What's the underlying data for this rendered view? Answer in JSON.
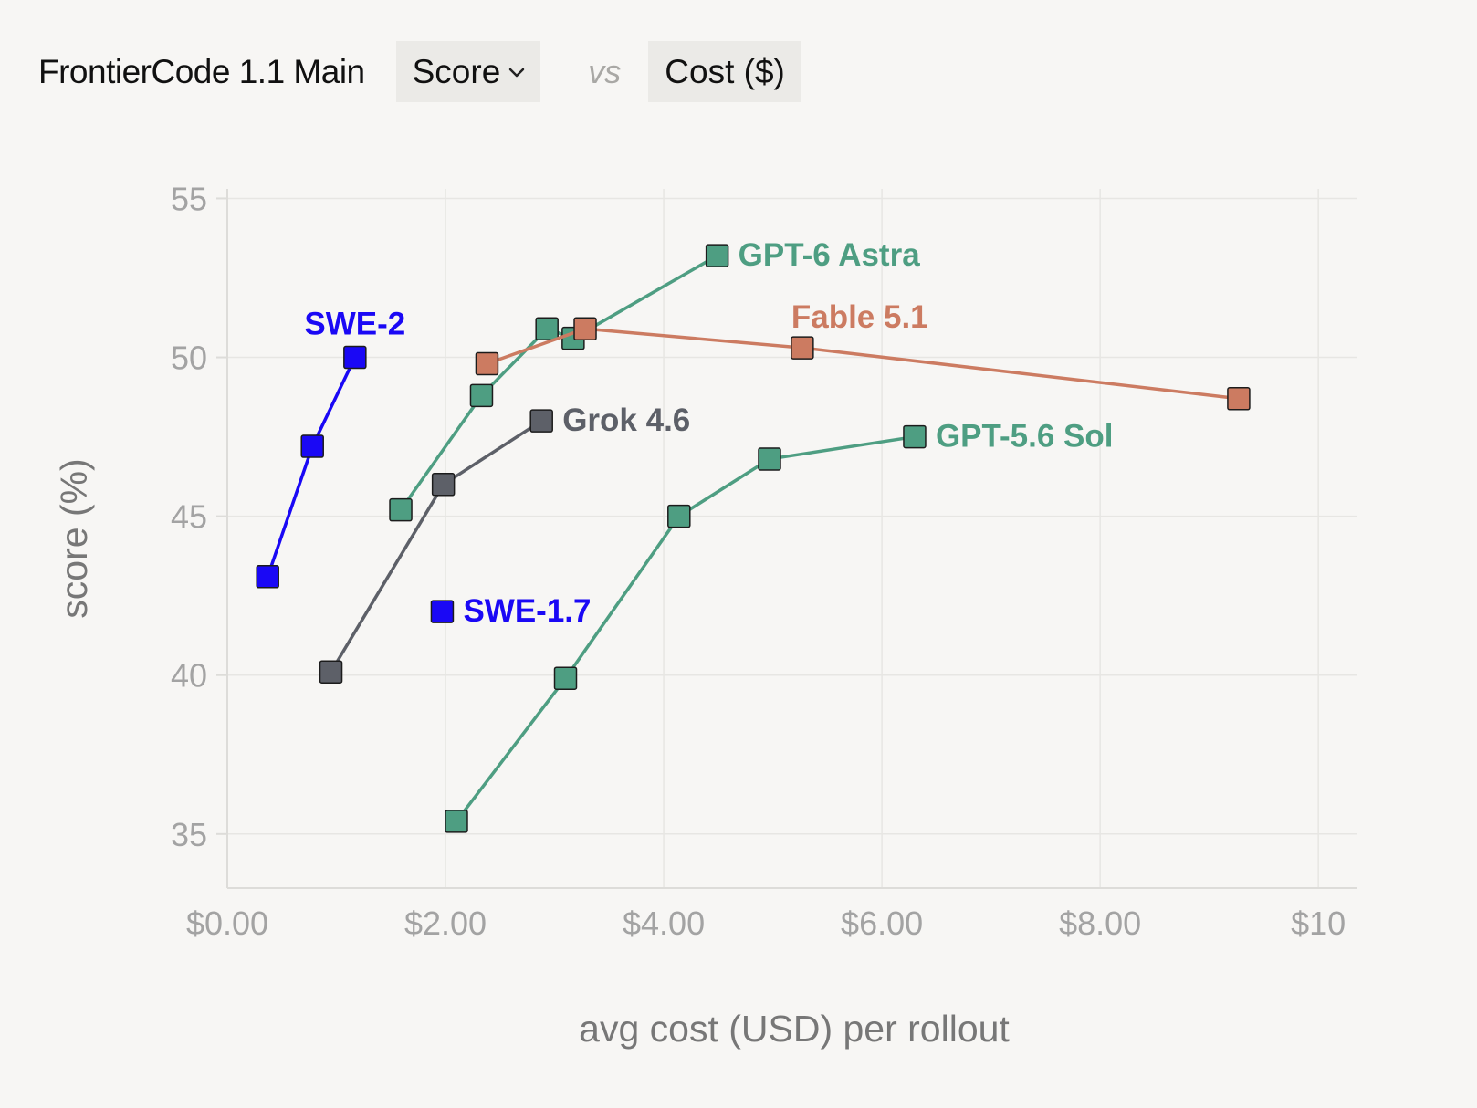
{
  "header": {
    "benchmark": "FrontierCode 1.1 Main",
    "metric_select": {
      "selected": "Score",
      "icon": "chevron-down-icon"
    },
    "vs": "vs",
    "comparison": "Cost ($)"
  },
  "chart_data": {
    "type": "line",
    "xlabel": "avg cost (USD) per rollout",
    "ylabel": "score (%)",
    "xlim": [
      0,
      10.35
    ],
    "ylim": [
      33.3,
      55.3
    ],
    "x_ticks": [
      {
        "value": 0,
        "label": "$0.00"
      },
      {
        "value": 2,
        "label": "$2.00"
      },
      {
        "value": 4,
        "label": "$4.00"
      },
      {
        "value": 6,
        "label": "$6.00"
      },
      {
        "value": 8,
        "label": "$8.00"
      },
      {
        "value": 10,
        "label": "$10"
      }
    ],
    "y_ticks": [
      {
        "value": 35,
        "label": "35"
      },
      {
        "value": 40,
        "label": "40"
      },
      {
        "value": 45,
        "label": "45"
      },
      {
        "value": 50,
        "label": "50"
      },
      {
        "value": 55,
        "label": "55"
      }
    ],
    "grid": true,
    "marker": "square",
    "series": [
      {
        "name": "SWE-2",
        "color": "#1a08f5",
        "label_placement": "above-last",
        "points": [
          [
            0.37,
            43.1
          ],
          [
            0.78,
            47.2
          ],
          [
            1.17,
            50.0
          ]
        ]
      },
      {
        "name": "SWE-1.7",
        "color": "#1a08f5",
        "label_placement": "right-last",
        "points": [
          [
            1.97,
            42.0
          ]
        ]
      },
      {
        "name": "Grok 4.6",
        "color": "#5d6068",
        "label_placement": "right-last",
        "points": [
          [
            0.95,
            40.1
          ],
          [
            1.98,
            46.0
          ],
          [
            2.88,
            48.0
          ]
        ]
      },
      {
        "name": "GPT-6 Astra",
        "color": "#4e9e82",
        "label_placement": "right-last",
        "points": [
          [
            1.59,
            45.2
          ],
          [
            2.33,
            48.8
          ],
          [
            2.93,
            50.9
          ],
          [
            3.17,
            50.6
          ],
          [
            4.49,
            53.2
          ]
        ]
      },
      {
        "name": "Fable 5.1",
        "color": "#cc7b61",
        "label_placement": "above-middle",
        "points": [
          [
            2.38,
            49.8
          ],
          [
            3.28,
            50.9
          ],
          [
            5.27,
            50.3
          ],
          [
            9.27,
            48.7
          ]
        ]
      },
      {
        "name": "GPT-5.6 Sol",
        "color": "#4e9e82",
        "label_placement": "right-last",
        "points": [
          [
            2.1,
            35.4
          ],
          [
            3.1,
            39.9
          ],
          [
            4.14,
            45.0
          ],
          [
            4.97,
            46.8
          ],
          [
            6.3,
            47.5
          ]
        ]
      }
    ]
  }
}
